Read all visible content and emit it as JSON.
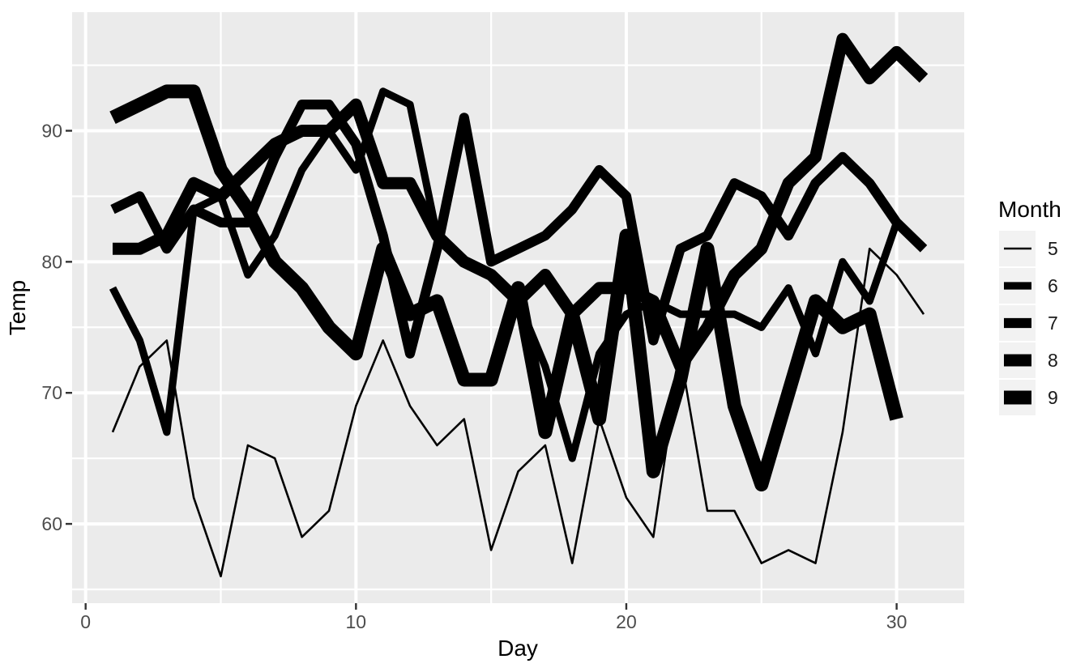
{
  "chart_data": {
    "type": "line",
    "title": "",
    "xlabel": "Day",
    "ylabel": "Temp",
    "x_major_ticks": [
      0,
      10,
      20,
      30
    ],
    "x_minor_ticks": [
      5,
      15,
      25
    ],
    "y_major_ticks": [
      60,
      70,
      80,
      90
    ],
    "y_minor_ticks": [
      55,
      65,
      75,
      85,
      95
    ],
    "xlim": [
      -0.5,
      32.5
    ],
    "ylim": [
      53.95,
      99.05
    ],
    "grid": "on",
    "line_color": "#000000",
    "legend": {
      "title": "Month",
      "position": "right",
      "entries": [
        {
          "label": "5",
          "line_width": 2.6
        },
        {
          "label": "6",
          "line_width": 9.2
        },
        {
          "label": "7",
          "line_width": 12.2
        },
        {
          "label": "8",
          "line_width": 15
        },
        {
          "label": "9",
          "line_width": 17
        }
      ]
    },
    "series": [
      {
        "name": "5",
        "month": 5,
        "first_day": 1,
        "stroke_width": 2.6,
        "values": [
          67,
          72,
          74,
          62,
          56,
          66,
          65,
          59,
          61,
          69,
          74,
          69,
          66,
          68,
          58,
          64,
          66,
          57,
          68,
          62,
          59,
          73,
          61,
          61,
          57,
          58,
          57,
          67,
          81,
          79,
          76
        ]
      },
      {
        "name": "6",
        "month": 6,
        "first_day": 1,
        "stroke_width": 9.2,
        "values": [
          78,
          74,
          67,
          84,
          85,
          79,
          82,
          87,
          90,
          87,
          93,
          92,
          82,
          80,
          79,
          77,
          72,
          65,
          73,
          76,
          77,
          76,
          76,
          76,
          75,
          78,
          73,
          80,
          77,
          83
        ]
      },
      {
        "name": "7",
        "month": 7,
        "first_day": 1,
        "stroke_width": 12.2,
        "values": [
          84,
          85,
          81,
          84,
          83,
          83,
          88,
          92,
          92,
          89,
          82,
          73,
          81,
          91,
          80,
          81,
          82,
          84,
          87,
          85,
          74,
          81,
          82,
          86,
          85,
          82,
          86,
          88,
          86,
          83,
          81
        ]
      },
      {
        "name": "8",
        "month": 8,
        "first_day": 1,
        "stroke_width": 15,
        "values": [
          81,
          81,
          82,
          86,
          85,
          87,
          89,
          90,
          90,
          92,
          86,
          86,
          82,
          80,
          79,
          77,
          79,
          76,
          78,
          78,
          77,
          72,
          75,
          79,
          81,
          86,
          88,
          97,
          94,
          96,
          94
        ]
      },
      {
        "name": "9",
        "month": 9,
        "first_day": 1,
        "stroke_width": 17,
        "values": [
          91,
          92,
          93,
          93,
          87,
          84,
          80,
          78,
          75,
          73,
          81,
          76,
          77,
          71,
          71,
          78,
          67,
          76,
          68,
          82,
          64,
          71,
          81,
          69,
          63,
          70,
          77,
          75,
          76,
          68
        ]
      }
    ]
  },
  "style": {
    "panel_bg": "#EBEBEB",
    "grid_color": "#FFFFFF",
    "tick_color": "#333333",
    "tick_label_color": "#4D4D4D",
    "axis_title_color": "#000000",
    "legend_label_color": "#1A1A1A",
    "legend_key_bg": "#F2F2F2",
    "page_bg": "#FFFFFF"
  }
}
